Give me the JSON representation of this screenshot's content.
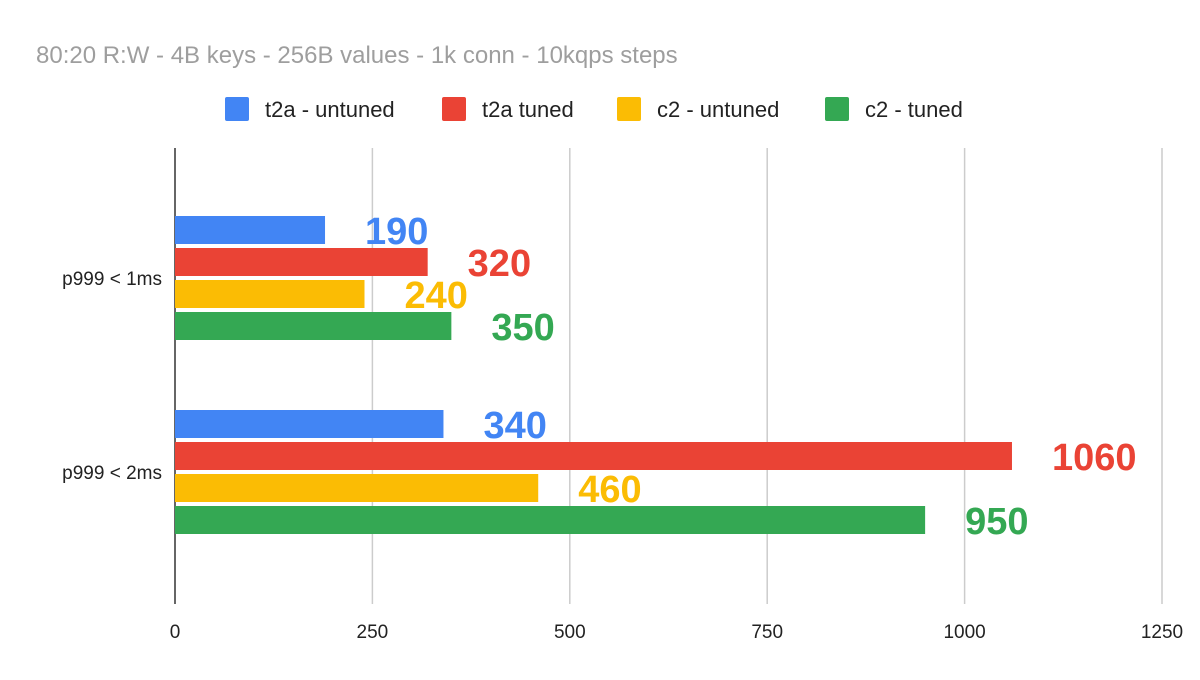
{
  "chart_data": {
    "type": "bar",
    "orientation": "horizontal",
    "title": "80:20 R:W - 4B keys - 256B values - 1k conn - 10kqps steps",
    "categories": [
      "p999 < 1ms",
      "p999 < 2ms"
    ],
    "series": [
      {
        "name": "t2a - untuned",
        "color": "#4285f4",
        "values": [
          190,
          340
        ]
      },
      {
        "name": "t2a tuned",
        "color": "#ea4335",
        "values": [
          320,
          1060
        ]
      },
      {
        "name": "c2 - untuned",
        "color": "#fbbc04",
        "values": [
          240,
          460
        ]
      },
      {
        "name": "c2 - tuned",
        "color": "#34a853",
        "values": [
          350,
          950
        ]
      }
    ],
    "xlim": [
      0,
      1250
    ],
    "xticks": [
      "0",
      "250",
      "500",
      "750",
      "1000",
      "1250"
    ],
    "grid": true,
    "legend_position": "top"
  }
}
